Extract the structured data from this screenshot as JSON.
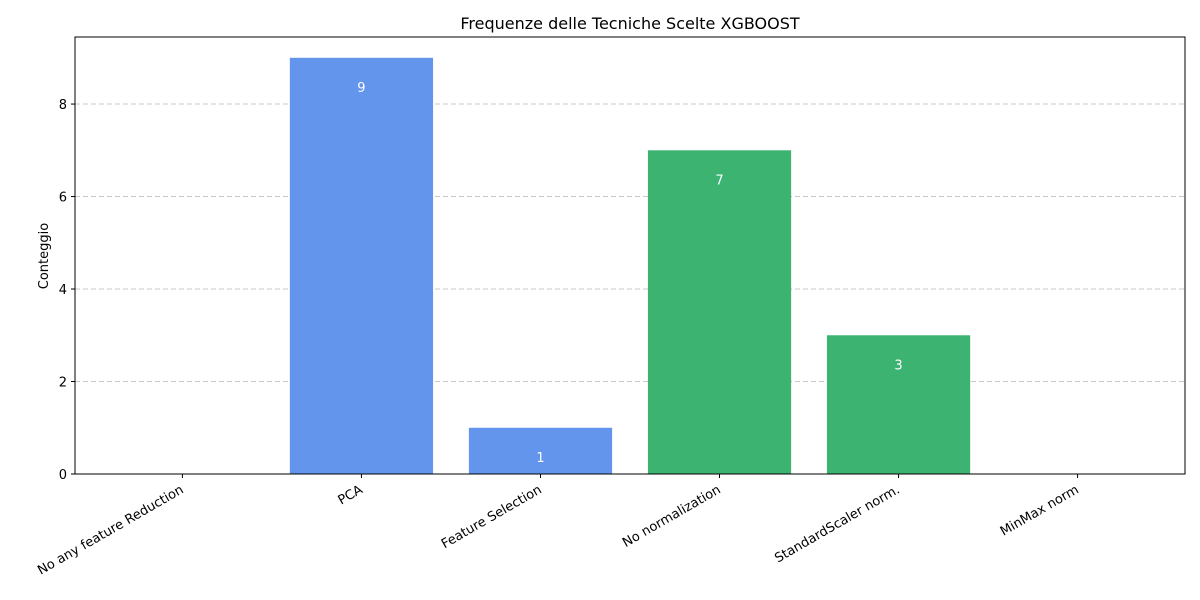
{
  "chart_data": {
    "type": "bar",
    "title": "Frequenze delle Tecniche Scelte XGBOOST",
    "xlabel": "",
    "ylabel": "Conteggio",
    "categories": [
      "No any feature Reduction",
      "PCA",
      "Feature Selection",
      "No normalization",
      "StandardScaler norm.",
      "MinMax norm"
    ],
    "values": [
      0,
      9,
      1,
      7,
      3,
      0
    ],
    "bar_colors": [
      "#6495ED",
      "#6495ED",
      "#6495ED",
      "#3CB371",
      "#3CB371",
      "#3CB371"
    ],
    "data_labels": [
      "",
      "9",
      "1",
      "7",
      "3",
      ""
    ],
    "data_label_color": "#ffffff",
    "ylim": [
      0,
      9.45
    ],
    "yticks": [
      0,
      2,
      4,
      6,
      8
    ],
    "grid": "y, dashed",
    "legend": "none"
  }
}
